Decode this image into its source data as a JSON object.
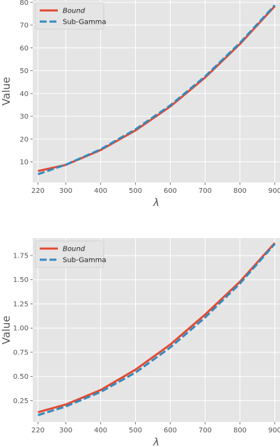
{
  "chart_data": [
    {
      "type": "line",
      "xlabel": "λ",
      "ylabel": "Value",
      "xlim": [
        205,
        915
      ],
      "ylim": [
        1,
        81
      ],
      "x": [
        220,
        300,
        400,
        500,
        600,
        700,
        800,
        900
      ],
      "xticks": [
        220,
        300,
        400,
        500,
        600,
        700,
        800,
        900
      ],
      "yticks": [
        10,
        20,
        30,
        40,
        50,
        60,
        70,
        80
      ],
      "yticklabels": [
        "10",
        "20",
        "30",
        "40",
        "50",
        "60",
        "70",
        "80"
      ],
      "grid": true,
      "legend_position": "top-left",
      "series": [
        {
          "name": "Bound",
          "values": [
            6.0,
            8.7,
            15.2,
            23.8,
            34.3,
            47.0,
            61.7,
            78.3
          ],
          "color": "#e24a33",
          "style": "solid",
          "italic": true
        },
        {
          "name": "Sub-Gamma",
          "values": [
            4.6,
            8.8,
            15.5,
            24.3,
            34.8,
            47.5,
            62.2,
            78.7
          ],
          "color": "#348abd",
          "style": "dashed",
          "italic": false
        }
      ]
    },
    {
      "type": "line",
      "xlabel": "λ",
      "ylabel": "Value",
      "xlim": [
        205,
        915
      ],
      "ylim": [
        0.03,
        1.93
      ],
      "x": [
        220,
        300,
        400,
        500,
        600,
        700,
        800,
        900
      ],
      "xticks": [
        220,
        300,
        400,
        500,
        600,
        700,
        800,
        900
      ],
      "yticks": [
        0.25,
        0.5,
        0.75,
        1.0,
        1.25,
        1.5,
        1.75
      ],
      "yticklabels": [
        "0.25",
        "0.50",
        "0.75",
        "1.00",
        "1.25",
        "1.50",
        "1.75"
      ],
      "grid": true,
      "legend_position": "top-left",
      "series": [
        {
          "name": "Bound",
          "values": [
            0.13,
            0.21,
            0.36,
            0.57,
            0.83,
            1.14,
            1.48,
            1.88
          ],
          "color": "#e24a33",
          "style": "solid",
          "italic": true
        },
        {
          "name": "Sub-Gamma",
          "values": [
            0.1,
            0.19,
            0.34,
            0.54,
            0.8,
            1.11,
            1.46,
            1.87
          ],
          "color": "#348abd",
          "style": "dashed",
          "italic": false
        }
      ]
    }
  ]
}
